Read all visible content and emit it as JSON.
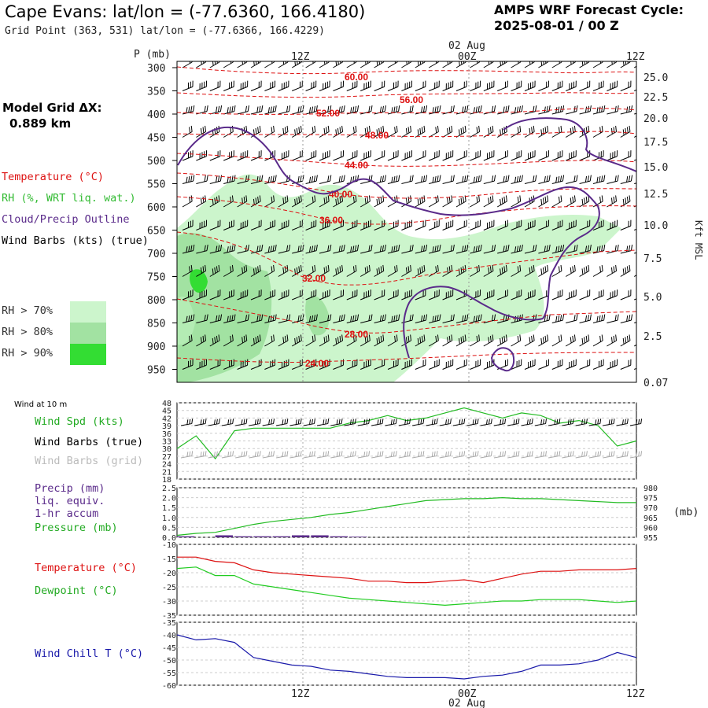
{
  "header": {
    "title": "Cape Evans:  lat/lon = (-77.6360, 166.4180)",
    "subtitle": "Grid Point (363, 531) lat/lon = (-77.6366, 166.4229)",
    "cycle_label": "AMPS WRF Forecast Cycle:",
    "cycle_value": "2025-08-01 / 00  Z",
    "grid_label": "Model Grid ΔX:",
    "grid_value": "0.889 km"
  },
  "legend": {
    "temperature": "Temperature (°C)",
    "rh": "RH (%, WRT liq. wat.)",
    "cloud": "Cloud/Precip Outline",
    "wind": "Wind Barbs (kts) (true)",
    "rh70": "RH > 70%",
    "rh80": "RH > 80%",
    "rh90": "RH > 90%",
    "wind_at_10m": "Wind at 10 m",
    "wind_spd": "Wind Spd (kts)",
    "barbs_true": "Wind Barbs (true)",
    "barbs_grid": "Wind Barbs (grid)",
    "precip": [
      "Precip (mm)",
      "liq. equiv.",
      "1-hr accum"
    ],
    "pressure": "Pressure (mb)",
    "temp2": "Temperature (°C)",
    "dewpoint": "Dewpoint (°C)",
    "windchill": "Wind Chill T (°C)",
    "mb_unit": "(mb)"
  },
  "colors": {
    "temperature": "#dd1111",
    "rh": "#33bb33",
    "cloud": "#5a2a8a",
    "wind": "#000000",
    "grid_barbs": "#aaaaaa",
    "rh70": "#ccf5cc",
    "rh80": "#a2e2a2",
    "rh90": "#33dd33",
    "windchill": "#1a1aaa",
    "dewpoint": "#22cc22"
  },
  "chart_data": [
    {
      "type": "area",
      "panel": "time-height cross section",
      "time_ticks": [
        "12Z",
        "00Z",
        "12Z"
      ],
      "date_label": "02 Aug",
      "ylabel_left": "P (mb)",
      "ylabel_right": "Kft MSL",
      "pressure_levels": [
        300,
        350,
        400,
        450,
        500,
        550,
        600,
        650,
        700,
        750,
        800,
        850,
        900,
        950
      ],
      "height_ticks": [
        "25.0",
        "22.5",
        "20.0",
        "17.5",
        "15.0",
        "12.5",
        "10.0",
        "7.5",
        "5.0",
        "2.5",
        "0.07"
      ],
      "temperature_contour_labels": [
        "60.00",
        "56.00",
        "52.00",
        "48.00",
        "44.00",
        "40.00",
        "36.00",
        "32.00",
        "28.00",
        "24.00"
      ]
    },
    {
      "type": "line",
      "panel": "wind at 10 m",
      "ylim": [
        18,
        48
      ],
      "yticks": [
        18,
        21,
        24,
        27,
        30,
        33,
        36,
        39,
        42,
        45,
        48
      ],
      "x_hours": [
        0,
        1,
        2,
        3,
        4,
        5,
        6,
        7,
        8,
        9,
        10,
        11,
        12,
        13,
        14,
        15,
        16,
        17,
        18,
        19,
        20,
        21,
        22,
        23,
        24
      ],
      "series": [
        {
          "name": "Wind Spd (kts)",
          "values": [
            30,
            35,
            26,
            37,
            38,
            38,
            38,
            38,
            38,
            40,
            41,
            43,
            41,
            42,
            44,
            46,
            44,
            42,
            44,
            43,
            40,
            41,
            39,
            31,
            33
          ]
        }
      ]
    },
    {
      "type": "line",
      "panel": "precip and pressure",
      "ylim_left": [
        0.0,
        2.5
      ],
      "yticks_left": [
        "0.0",
        "0.5",
        "1.0",
        "1.5",
        "2.0",
        "2.5"
      ],
      "ylim_right": [
        955,
        980
      ],
      "yticks_right": [
        955,
        960,
        965,
        970,
        975,
        980
      ],
      "x_hours": [
        0,
        1,
        2,
        3,
        4,
        5,
        6,
        7,
        8,
        9,
        10,
        11,
        12,
        13,
        14,
        15,
        16,
        17,
        18,
        19,
        20,
        21,
        22,
        23,
        24
      ],
      "series": [
        {
          "name": "Pressure (mb)",
          "values": [
            956,
            957,
            957.5,
            959.5,
            961.5,
            963,
            964,
            965,
            966.5,
            967.5,
            969,
            970.5,
            972,
            973.5,
            974,
            974.5,
            974.5,
            975,
            974.5,
            974.5,
            974,
            973.5,
            973,
            972.5,
            972.5
          ]
        },
        {
          "name": "Precip (mm)",
          "values": [
            0.05,
            0.0,
            0.1,
            0.05,
            0.05,
            0.05,
            0.1,
            0.1,
            0.05,
            0.03,
            0.0,
            0.0,
            0.0,
            0.0,
            0.0,
            0.0,
            0.0,
            0.0,
            0.0,
            0.0,
            0.0,
            0.0,
            0.0,
            0.0,
            0.0
          ]
        }
      ]
    },
    {
      "type": "line",
      "panel": "temperature and dewpoint",
      "ylim": [
        -35,
        -10
      ],
      "yticks": [
        -35,
        -30,
        -25,
        -20,
        -15,
        -10
      ],
      "x_hours": [
        0,
        1,
        2,
        3,
        4,
        5,
        6,
        7,
        8,
        9,
        10,
        11,
        12,
        13,
        14,
        15,
        16,
        17,
        18,
        19,
        20,
        21,
        22,
        23,
        24
      ],
      "series": [
        {
          "name": "Temperature (°C)",
          "values": [
            -14.5,
            -14.5,
            -16,
            -16.5,
            -19,
            -20,
            -20.5,
            -21,
            -21.5,
            -22,
            -23,
            -23,
            -23.5,
            -23.5,
            -23,
            -22.5,
            -23.5,
            -22,
            -20.5,
            -19.5,
            -19.5,
            -19,
            -19,
            -19,
            -18.5
          ]
        },
        {
          "name": "Dewpoint (°C)",
          "values": [
            -18.5,
            -18,
            -21,
            -21,
            -24,
            -25,
            -26,
            -27,
            -28,
            -29,
            -29.5,
            -30,
            -30.5,
            -31,
            -31.5,
            -31,
            -30.5,
            -30,
            -30,
            -29.5,
            -29.5,
            -29.5,
            -30,
            -30.5,
            -30
          ]
        }
      ]
    },
    {
      "type": "line",
      "panel": "wind chill",
      "ylim": [
        -60,
        -35
      ],
      "yticks": [
        -60,
        -55,
        -50,
        -45,
        -40,
        -35
      ],
      "x_hours": [
        0,
        1,
        2,
        3,
        4,
        5,
        6,
        7,
        8,
        9,
        10,
        11,
        12,
        13,
        14,
        15,
        16,
        17,
        18,
        19,
        20,
        21,
        22,
        23,
        24
      ],
      "series": [
        {
          "name": "Wind Chill T (°C)",
          "values": [
            -40,
            -42,
            -41.5,
            -43,
            -49,
            -50.5,
            -52,
            -52.5,
            -54,
            -54.5,
            -55.5,
            -56.5,
            -57,
            -57,
            -57,
            -57.5,
            -56.5,
            -56,
            -54.5,
            -52,
            -52,
            -51.5,
            -50,
            -47,
            -49
          ]
        }
      ]
    }
  ]
}
